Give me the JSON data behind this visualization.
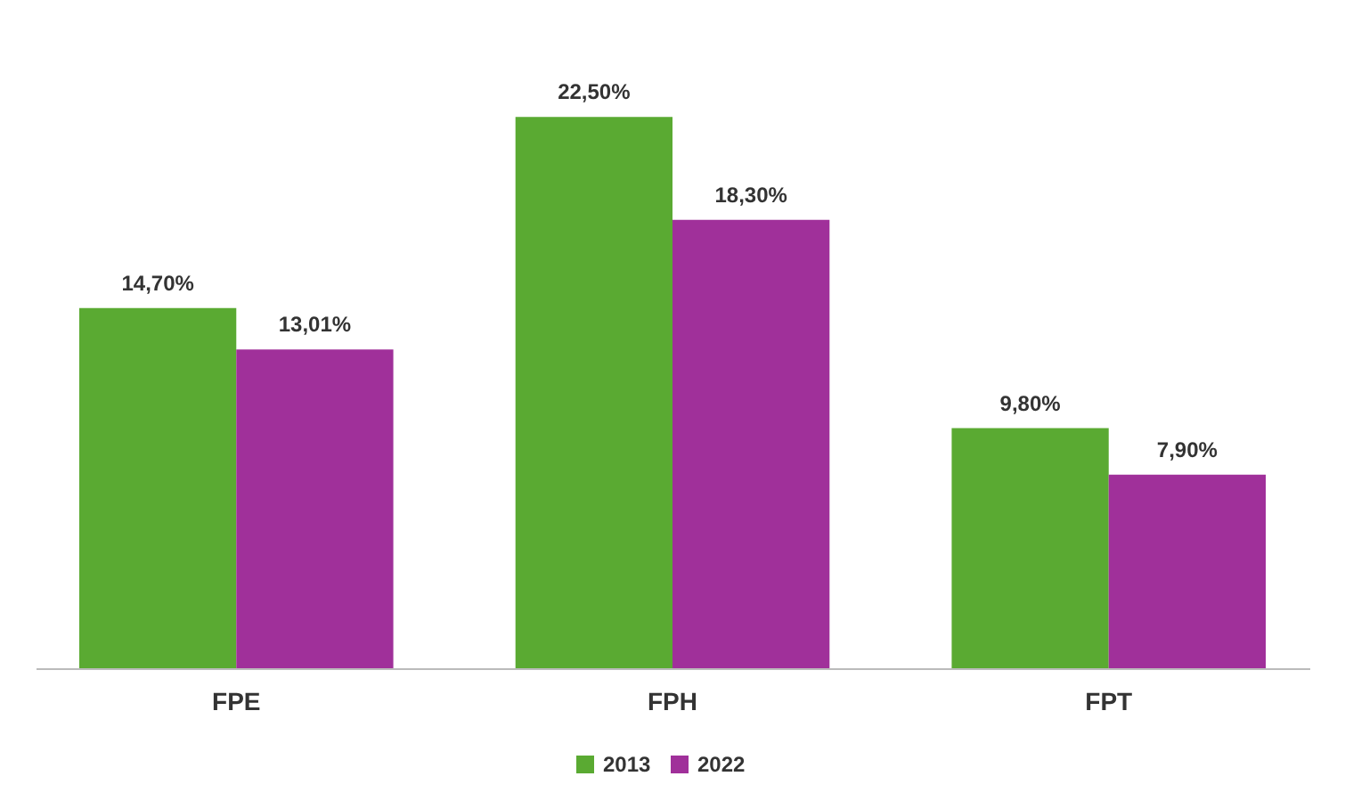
{
  "chart_data": {
    "type": "bar",
    "categories": [
      "FPE",
      "FPH",
      "FPT"
    ],
    "series": [
      {
        "name": "2013",
        "color": "#5aaa32",
        "values": [
          14.7,
          22.5,
          9.8
        ],
        "value_labels": [
          "14,70%",
          "22,50%",
          "9,80%"
        ]
      },
      {
        "name": "2022",
        "color": "#a0309a",
        "values": [
          13.01,
          18.3,
          7.9
        ],
        "value_labels": [
          "13,01%",
          "18,30%",
          "7,90%"
        ]
      }
    ],
    "grid": false,
    "legend": "bottom"
  }
}
